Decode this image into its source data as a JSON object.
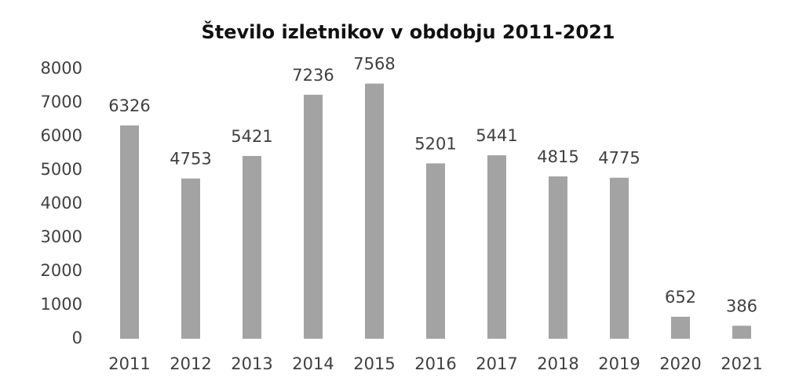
{
  "chart_data": {
    "type": "bar",
    "title": "Število izletnikov v obdobju 2011-2021",
    "categories": [
      "2011",
      "2012",
      "2013",
      "2014",
      "2015",
      "2016",
      "2017",
      "2018",
      "2019",
      "2020",
      "2021"
    ],
    "values": [
      6326,
      4753,
      5421,
      7236,
      7568,
      5201,
      5441,
      4815,
      4775,
      652,
      386
    ],
    "color": "#a3a3a3",
    "ylim": [
      0,
      8000
    ],
    "yticks": [
      0,
      1000,
      2000,
      3000,
      4000,
      5000,
      6000,
      7000,
      8000
    ],
    "grid": false
  }
}
